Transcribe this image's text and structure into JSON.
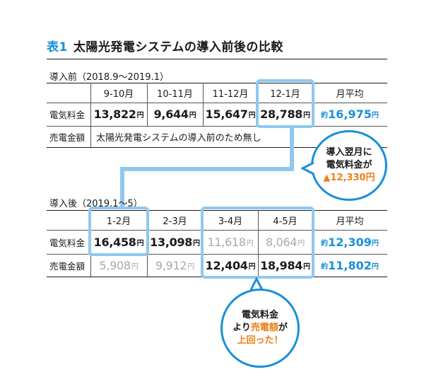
{
  "title": {
    "number": "表1",
    "text": "太陽光発電システムの導入前後の比較"
  },
  "before": {
    "label": "導入前（2018.9～2019.1）",
    "headers": [
      "9-10月",
      "10-11月",
      "11-12月",
      "12-1月",
      "月平均"
    ],
    "electric_label": "電気料金",
    "electric": [
      "13,822",
      "9,644",
      "15,647",
      "28,788"
    ],
    "electric_avg_prefix": "約",
    "electric_avg": "16,975",
    "sales_label": "売電金額",
    "sales_note": "太陽光発電システムの導入前のため無し"
  },
  "after": {
    "label": "導入後（2019.1～5）",
    "headers": [
      "1-2月",
      "2-3月",
      "3-4月",
      "4-5月",
      "月平均"
    ],
    "electric_label": "電気料金",
    "electric": [
      "16,458",
      "13,098",
      "11,618",
      "8,064"
    ],
    "electric_avg_prefix": "約",
    "electric_avg": "12,309",
    "sales_label": "売電金額",
    "sales": [
      "5,908",
      "9,912",
      "12,404",
      "18,984"
    ],
    "sales_avg_prefix": "約",
    "sales_avg": "11,802"
  },
  "unit": "円",
  "bubble1": {
    "line1": "導入翌月に",
    "line2": "電気料金が",
    "line3": "▲12,330円"
  },
  "bubble2": {
    "line1": "電気料金",
    "line2_pre": "より",
    "line2_em": "売電額",
    "line2_post": "が",
    "line3": "上回った！"
  },
  "colors": {
    "accent": "#1a8fd8",
    "highlight": "#8fc8ee",
    "orange": "#ef7e16",
    "muted": "#a9a9a9"
  }
}
